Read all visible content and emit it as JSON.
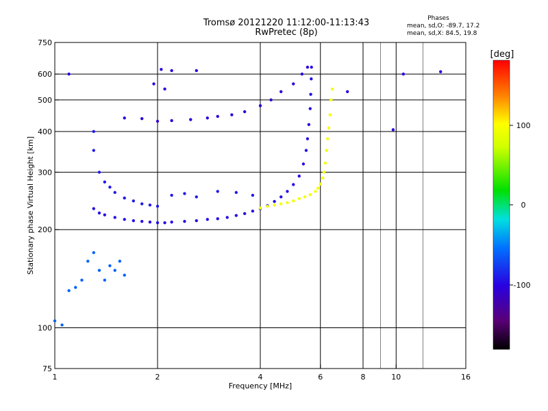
{
  "chart_data": {
    "type": "scatter",
    "title": "Tromsø 20121220 11:12:00-11:13:43",
    "subtitle": "RwPretec (8p)",
    "xlabel": "Frequency [MHz]",
    "ylabel": "Stationary phase Virtual Height [km]",
    "x_scale": "log",
    "y_scale": "log",
    "xlim": [
      1,
      16
    ],
    "ylim": [
      75,
      750
    ],
    "x_ticks": [
      "1",
      "2",
      "4",
      "6",
      "8",
      "10",
      "16"
    ],
    "y_ticks": [
      "75",
      "100",
      "200",
      "300",
      "400",
      "500",
      "600",
      "750"
    ],
    "grid": true,
    "stats": {
      "header": "Phases",
      "line_o": "mean, sd,O: -89.7, 17.2",
      "line_x": "mean, sd,X:  84.5, 19.8"
    },
    "colorbar": {
      "label": "[deg]",
      "range": [
        -180,
        180
      ],
      "ticks": [
        "100",
        "0",
        "-100"
      ]
    },
    "series": [
      {
        "trace": "O-mode F-layer trace",
        "phase_deg": -95,
        "points": [
          [
            1.3,
            232
          ],
          [
            1.35,
            225
          ],
          [
            1.4,
            222
          ],
          [
            1.5,
            218
          ],
          [
            1.6,
            215
          ],
          [
            1.7,
            213
          ],
          [
            1.8,
            212
          ],
          [
            1.9,
            211
          ],
          [
            2.0,
            210
          ],
          [
            2.1,
            210
          ],
          [
            2.2,
            211
          ],
          [
            2.4,
            212
          ],
          [
            2.6,
            213
          ],
          [
            2.8,
            215
          ],
          [
            3.0,
            216
          ],
          [
            3.2,
            218
          ],
          [
            3.4,
            221
          ],
          [
            3.6,
            224
          ],
          [
            3.8,
            228
          ],
          [
            4.0,
            232
          ],
          [
            4.2,
            237
          ],
          [
            4.4,
            244
          ],
          [
            4.6,
            252
          ],
          [
            4.8,
            262
          ],
          [
            5.0,
            275
          ],
          [
            5.2,
            292
          ],
          [
            5.35,
            318
          ],
          [
            5.45,
            350
          ],
          [
            5.5,
            380
          ],
          [
            5.55,
            420
          ],
          [
            5.6,
            470
          ],
          [
            5.62,
            520
          ],
          [
            5.64,
            580
          ],
          [
            5.65,
            630
          ]
        ]
      },
      {
        "trace": "X-mode F-layer trace",
        "phase_deg": 95,
        "points": [
          [
            4.0,
            233
          ],
          [
            4.2,
            236
          ],
          [
            4.4,
            238
          ],
          [
            4.6,
            240
          ],
          [
            4.8,
            242
          ],
          [
            5.0,
            245
          ],
          [
            5.2,
            249
          ],
          [
            5.4,
            252
          ],
          [
            5.6,
            256
          ],
          [
            5.8,
            262
          ],
          [
            5.9,
            268
          ],
          [
            6.0,
            276
          ],
          [
            6.1,
            288
          ],
          [
            6.15,
            300
          ],
          [
            6.2,
            320
          ],
          [
            6.25,
            350
          ],
          [
            6.3,
            380
          ],
          [
            6.35,
            410
          ],
          [
            6.4,
            450
          ],
          [
            6.45,
            500
          ],
          [
            6.5,
            540
          ]
        ]
      },
      {
        "trace": "Upper trace",
        "phase_deg": -105,
        "points": [
          [
            1.6,
            440
          ],
          [
            1.8,
            438
          ],
          [
            2.0,
            430
          ],
          [
            2.2,
            432
          ],
          [
            2.5,
            435
          ],
          [
            2.8,
            440
          ],
          [
            3.0,
            445
          ],
          [
            3.3,
            450
          ],
          [
            3.6,
            460
          ],
          [
            4.0,
            480
          ],
          [
            4.3,
            500
          ],
          [
            4.6,
            530
          ],
          [
            5.0,
            560
          ],
          [
            5.3,
            600
          ],
          [
            5.5,
            630
          ]
        ]
      },
      {
        "trace": "Low echoes",
        "phase_deg": -60,
        "points": [
          [
            1.0,
            105
          ],
          [
            1.05,
            102
          ],
          [
            1.1,
            130
          ],
          [
            1.15,
            133
          ],
          [
            1.2,
            140
          ],
          [
            1.25,
            160
          ],
          [
            1.3,
            170
          ],
          [
            1.35,
            150
          ],
          [
            1.4,
            140
          ],
          [
            1.45,
            155
          ],
          [
            1.5,
            150
          ],
          [
            1.55,
            160
          ],
          [
            1.6,
            145
          ]
        ]
      },
      {
        "trace": "Spread scatter",
        "phase_deg": -90,
        "points": [
          [
            1.3,
            400
          ],
          [
            1.3,
            350
          ],
          [
            1.35,
            300
          ],
          [
            1.4,
            280
          ],
          [
            1.45,
            270
          ],
          [
            1.5,
            260
          ],
          [
            1.6,
            250
          ],
          [
            1.7,
            245
          ],
          [
            1.8,
            240
          ],
          [
            1.9,
            238
          ],
          [
            2.0,
            236
          ],
          [
            2.2,
            255
          ],
          [
            2.4,
            258
          ],
          [
            2.6,
            252
          ],
          [
            3.0,
            262
          ],
          [
            3.4,
            260
          ],
          [
            3.8,
            255
          ]
        ]
      },
      {
        "trace": "Isolated echoes",
        "phase_deg": -100,
        "points": [
          [
            2.05,
            620
          ],
          [
            2.2,
            615
          ],
          [
            2.6,
            615
          ],
          [
            1.95,
            560
          ],
          [
            2.1,
            540
          ],
          [
            10.5,
            600
          ],
          [
            13.5,
            610
          ],
          [
            9.8,
            405
          ],
          [
            7.2,
            530
          ],
          [
            1.1,
            600
          ]
        ]
      }
    ]
  }
}
